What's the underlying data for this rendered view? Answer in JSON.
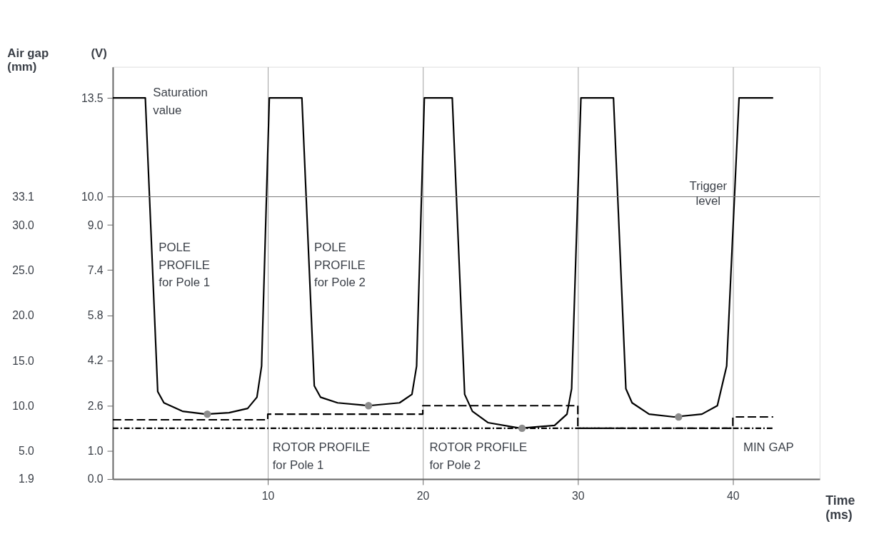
{
  "chart_data": {
    "type": "line",
    "xlabel": "Time\n(ms)",
    "ylabel": "(V)",
    "y2label": "Air gap\n\n(mm)",
    "xlim": [
      0,
      45.6
    ],
    "xticks": [
      10,
      20,
      30,
      40
    ],
    "ylim": [
      0,
      14.6
    ],
    "yticks": [
      {
        "value": 0,
        "label": "0.0"
      },
      {
        "value": 1,
        "label": "1.0"
      },
      {
        "value": 2.6,
        "label": "2.6"
      },
      {
        "value": 4.2,
        "label": "4.2"
      },
      {
        "value": 5.8,
        "label": "5.8"
      },
      {
        "value": 7.4,
        "label": "7.4"
      },
      {
        "value": 9,
        "label": "9.0"
      },
      {
        "value": 10,
        "label": "10.0"
      },
      {
        "value": 13.5,
        "label": "13.5"
      }
    ],
    "y2lim": [
      1.9,
      47.5
    ],
    "y2ticks": [
      {
        "value": 1.9,
        "label": "1.9"
      },
      {
        "value": 5,
        "label": "5.0"
      },
      {
        "value": 10,
        "label": "10.0"
      },
      {
        "value": 15,
        "label": "15.0"
      },
      {
        "value": 20,
        "label": "20.0"
      },
      {
        "value": 25,
        "label": "25.0"
      },
      {
        "value": 30,
        "label": "30.0"
      },
      {
        "value": 33.1,
        "label": "33.1"
      }
    ],
    "grid": "x",
    "series": [
      {
        "color": "#000000",
        "line_style": "solid",
        "x": [
          0,
          2.1,
          2.9,
          3.3,
          4.5,
          6.0,
          7.5,
          8.7,
          9.3,
          9.6,
          10.1,
          12.2,
          13.0,
          13.4,
          14.5,
          16.5,
          18.5,
          19.3,
          19.6,
          20.1,
          21.9,
          22.7,
          23.2,
          24.2,
          26.3,
          28.5,
          29.3,
          29.6,
          30.2,
          32.3,
          33.1,
          33.5,
          34.6,
          36.2,
          38.0,
          39.0,
          39.3,
          39.6,
          40.4,
          42.6
        ],
        "values": [
          13.5,
          13.5,
          3.1,
          2.7,
          2.4,
          2.3,
          2.35,
          2.5,
          2.9,
          4.0,
          13.5,
          13.5,
          3.3,
          2.9,
          2.7,
          2.6,
          2.7,
          3.0,
          4.0,
          13.5,
          13.5,
          3.0,
          2.4,
          2.0,
          1.8,
          1.9,
          2.3,
          3.2,
          13.5,
          13.5,
          3.2,
          2.7,
          2.3,
          2.2,
          2.3,
          2.6,
          3.3,
          4.0,
          13.5,
          13.5
        ]
      },
      {
        "type": "step",
        "color": "#000000",
        "line_style": "dashed",
        "x": [
          0,
          10,
          20,
          30,
          40,
          42.6
        ],
        "values": [
          2.1,
          2.3,
          2.6,
          1.8,
          2.2,
          2.2
        ]
      },
      {
        "color": "#000000",
        "line_style": "dotted",
        "x": [
          0,
          42.6
        ],
        "values": [
          1.8,
          1.8
        ]
      },
      {
        "type": "scatter",
        "color": "#8c8c8c",
        "marker": "circle",
        "x": [
          6.1,
          16.5,
          26.4,
          36.5
        ],
        "values": [
          2.3,
          2.6,
          1.8,
          2.2
        ]
      }
    ],
    "ref_lines": [
      {
        "axis": "y",
        "value": 10,
        "label": "Trigger level",
        "color": "#777777"
      }
    ],
    "annotations": [
      "Saturation\nvalue",
      "POLE\nPROFILE\nfor Pole 1",
      "POLE\nPROFILE\nfor Pole 2",
      "ROTOR PROFILE\nfor Pole 1",
      "ROTOR PROFILE\nfor Pole 2",
      "MIN GAP"
    ]
  }
}
